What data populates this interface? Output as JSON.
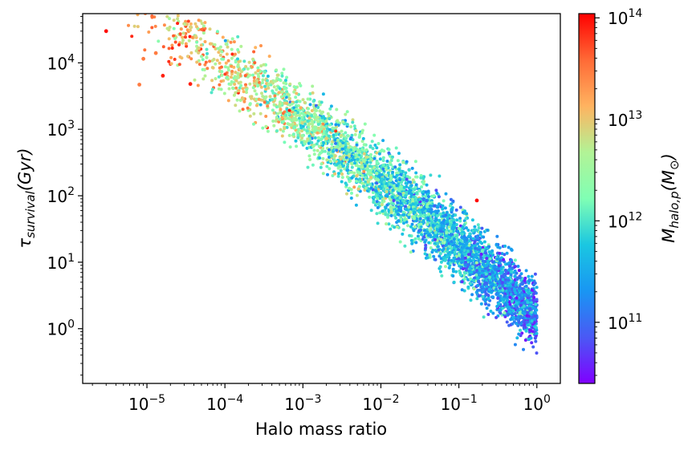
{
  "chart_data": {
    "type": "scatter",
    "xlabel": "Halo mass ratio",
    "ylabel": "τ_survival(Gyr)",
    "ylabel_parts": {
      "base": "τ",
      "sub": "survival",
      "rest": "(Gyr)"
    },
    "x_scale": "log",
    "y_scale": "log",
    "xlim": [
      1.5e-06,
      2.0
    ],
    "ylim": [
      0.15,
      55000
    ],
    "x_ticks": [
      {
        "value": 1e-05,
        "base": "10",
        "exp": "−5"
      },
      {
        "value": 0.0001,
        "base": "10",
        "exp": "−4"
      },
      {
        "value": 0.001,
        "base": "10",
        "exp": "−3"
      },
      {
        "value": 0.01,
        "base": "10",
        "exp": "−2"
      },
      {
        "value": 0.1,
        "base": "10",
        "exp": "−1"
      },
      {
        "value": 1,
        "base": "10",
        "exp": "0"
      }
    ],
    "y_ticks": [
      {
        "value": 1,
        "base": "10",
        "exp": "0"
      },
      {
        "value": 10,
        "base": "10",
        "exp": "1"
      },
      {
        "value": 100,
        "base": "10",
        "exp": "2"
      },
      {
        "value": 1000,
        "base": "10",
        "exp": "3"
      },
      {
        "value": 10000,
        "base": "10",
        "exp": "4"
      }
    ],
    "colorbar": {
      "colormap": "rainbow",
      "label_parts": {
        "base": "M",
        "sub": "halo,p",
        "rest": "(M",
        "sun_sub": "⊙",
        "close": ")"
      },
      "range": [
        25000000000.0,
        110000000000000.0
      ],
      "ticks": [
        {
          "value": 100000000000.0,
          "base": "10",
          "exp": "11"
        },
        {
          "value": 1000000000000.0,
          "base": "10",
          "exp": "12"
        },
        {
          "value": 10000000000000.0,
          "base": "10",
          "exp": "13"
        },
        {
          "value": 100000000000000.0,
          "base": "10",
          "exp": "14"
        }
      ]
    },
    "grid": false,
    "highlighted_points": [
      {
        "x": 3e-06,
        "y": 30000,
        "mass": 100000000000000.0
      },
      {
        "x": 8e-06,
        "y": 4700,
        "mass": 30000000000000.0
      },
      {
        "x": 9e-06,
        "y": 11500,
        "mass": 30000000000000.0
      },
      {
        "x": 1.3e-05,
        "y": 14000,
        "mass": 30000000000000.0
      },
      {
        "x": 1.6e-05,
        "y": 6400,
        "mass": 80000000000000.0
      },
      {
        "x": 3.6e-05,
        "y": 4800,
        "mass": 80000000000000.0
      },
      {
        "x": 0.17,
        "y": 85,
        "mass": 100000000000000.0
      }
    ],
    "point_cloud": {
      "n_points": 4200,
      "trend": "log10(tau) ≈ -0.0376·(log10 q)² - 1.09·log10(q) + 0.20 (scatter ~0.25 dex)",
      "mass_trend": "high-mass (red/orange, ~1e13–1e14) at low ratios; low-mass (blue/cyan, ~1e11–1e12) at ratios > 1e-2",
      "x_range": [
        3e-06,
        1.0
      ],
      "seed": 7
    }
  }
}
